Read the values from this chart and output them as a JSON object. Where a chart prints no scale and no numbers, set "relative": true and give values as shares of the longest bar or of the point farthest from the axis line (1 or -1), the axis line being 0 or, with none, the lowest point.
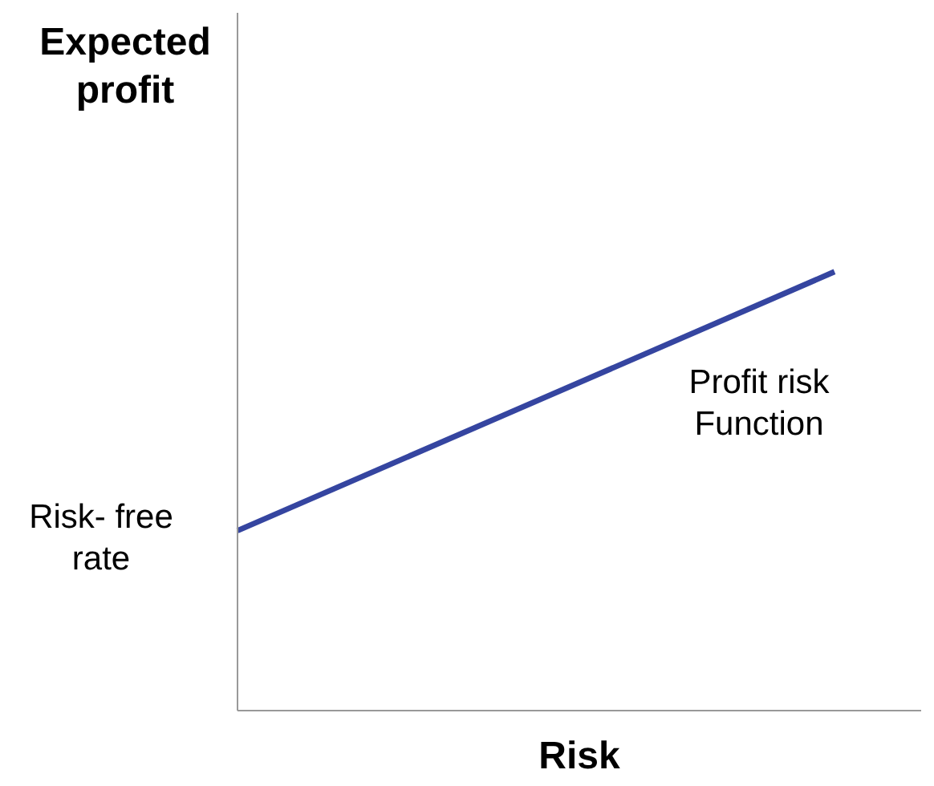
{
  "chart_data": {
    "type": "line",
    "relative": true,
    "xlabel": "Risk",
    "ylabel": "Expected profit",
    "categories": [
      null,
      null
    ],
    "series": [
      {
        "color": "#3545a0",
        "values": [
          0.41,
          1
        ]
      }
    ],
    "annotations": [
      "Profit risk Function",
      "Risk- free rate"
    ],
    "marker": "none",
    "line_style": "solid"
  }
}
